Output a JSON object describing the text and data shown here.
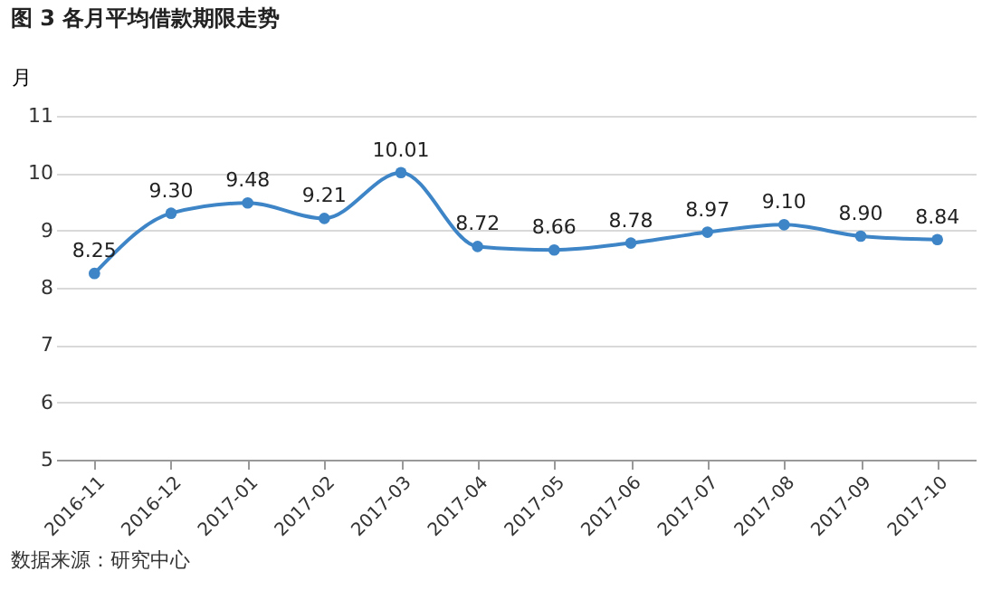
{
  "chart_data": {
    "type": "line",
    "title": "图 3 各月平均借款期限走势",
    "ylabel": "月",
    "categories": [
      "2016-11",
      "2016-12",
      "2017-01",
      "2017-02",
      "2017-03",
      "2017-04",
      "2017-05",
      "2017-06",
      "2017-07",
      "2017-08",
      "2017-09",
      "2017-10"
    ],
    "series": [
      {
        "color": "#3d85c6",
        "values": [
          8.25,
          9.3,
          9.48,
          9.21,
          10.01,
          8.72,
          8.66,
          8.78,
          8.97,
          9.1,
          8.9,
          8.84
        ]
      }
    ],
    "value_labels": [
      "8.25",
      "9.30",
      "9.48",
      "9.21",
      "10.01",
      "8.72",
      "8.66",
      "8.78",
      "8.97",
      "9.10",
      "8.90",
      "8.84"
    ],
    "ylim": [
      5,
      11
    ],
    "yticks": [
      5,
      6,
      7,
      8,
      9,
      10,
      11
    ],
    "grid": "y",
    "marker": "circle",
    "line_style": "solid",
    "annotations": [
      "数据来源：研究中心"
    ]
  }
}
